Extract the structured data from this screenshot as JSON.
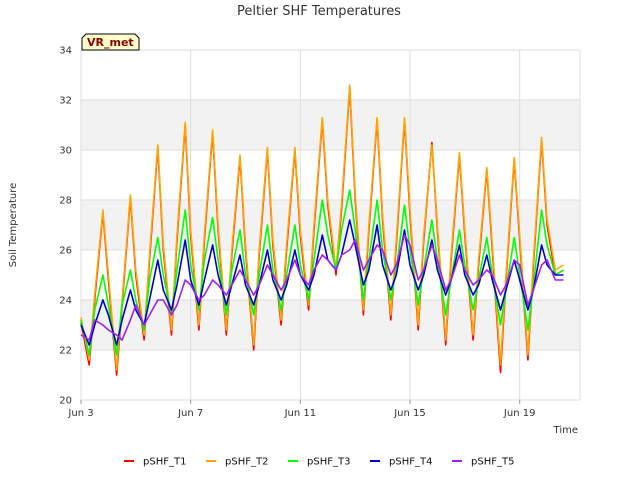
{
  "chart_data": {
    "type": "line",
    "title": "Peltier SHF Temperatures",
    "xlabel": "Time",
    "ylabel": "Soil Temperature",
    "badge": "VR_met",
    "ylim": [
      20,
      34
    ],
    "yticks": [
      20,
      22,
      24,
      26,
      28,
      30,
      32,
      34
    ],
    "xlim": [
      3,
      21.2
    ],
    "xticks": [
      {
        "day": 3,
        "label": "Jun 3"
      },
      {
        "day": 7,
        "label": "Jun 7"
      },
      {
        "day": 11,
        "label": "Jun 11"
      },
      {
        "day": 15,
        "label": "Jun 15"
      },
      {
        "day": 19,
        "label": "Jun 19"
      }
    ],
    "grid": true,
    "legend_position": "bottom",
    "series": [
      {
        "name": "pSHF_T1",
        "color": "#ff0000",
        "x": [
          3.0,
          3.3,
          3.5,
          3.8,
          4.0,
          4.3,
          4.5,
          4.8,
          5.0,
          5.3,
          5.5,
          5.8,
          6.0,
          6.3,
          6.5,
          6.8,
          7.0,
          7.3,
          7.5,
          7.8,
          8.0,
          8.3,
          8.5,
          8.8,
          9.0,
          9.3,
          9.5,
          9.8,
          10.0,
          10.3,
          10.5,
          10.8,
          11.0,
          11.3,
          11.5,
          11.8,
          12.0,
          12.3,
          12.5,
          12.8,
          13.0,
          13.3,
          13.5,
          13.8,
          14.0,
          14.3,
          14.5,
          14.8,
          15.0,
          15.3,
          15.5,
          15.8,
          16.0,
          16.3,
          16.5,
          16.8,
          17.0,
          17.3,
          17.5,
          17.8,
          18.0,
          18.3,
          18.5,
          18.8,
          19.0,
          19.3,
          19.5,
          19.8,
          20.0,
          20.3,
          20.6
        ],
        "y": [
          23.1,
          21.4,
          24.0,
          27.5,
          24.8,
          21.0,
          23.8,
          28.1,
          25.0,
          22.4,
          25.6,
          30.1,
          26.0,
          22.6,
          26.4,
          31.0,
          26.6,
          22.8,
          26.4,
          30.7,
          26.8,
          22.6,
          25.8,
          29.7,
          26.0,
          22.0,
          25.8,
          30.0,
          26.2,
          23.0,
          26.0,
          30.0,
          26.6,
          23.6,
          26.8,
          31.2,
          27.8,
          25.0,
          27.6,
          32.5,
          28.0,
          23.4,
          26.8,
          31.2,
          27.2,
          23.2,
          26.2,
          31.2,
          27.4,
          22.8,
          26.4,
          30.3,
          26.8,
          22.2,
          25.6,
          29.8,
          26.6,
          22.4,
          25.4,
          29.2,
          26.0,
          21.1,
          24.8,
          29.6,
          26.4,
          21.6,
          25.4,
          30.4,
          27.0,
          25.0,
          25.2
        ]
      },
      {
        "name": "pSHF_T2",
        "color": "#ffa500",
        "x": [
          3.0,
          3.3,
          3.5,
          3.8,
          4.0,
          4.3,
          4.5,
          4.8,
          5.0,
          5.3,
          5.5,
          5.8,
          6.0,
          6.3,
          6.5,
          6.8,
          7.0,
          7.3,
          7.5,
          7.8,
          8.0,
          8.3,
          8.5,
          8.8,
          9.0,
          9.3,
          9.5,
          9.8,
          10.0,
          10.3,
          10.5,
          10.8,
          11.0,
          11.3,
          11.5,
          11.8,
          12.0,
          12.3,
          12.5,
          12.8,
          13.0,
          13.3,
          13.5,
          13.8,
          14.0,
          14.3,
          14.5,
          14.8,
          15.0,
          15.3,
          15.5,
          15.8,
          16.0,
          16.3,
          16.5,
          16.8,
          17.0,
          17.3,
          17.5,
          17.8,
          18.0,
          18.3,
          18.5,
          18.8,
          19.0,
          19.3,
          19.5,
          19.8,
          20.0,
          20.3,
          20.6
        ],
        "y": [
          23.3,
          21.6,
          24.2,
          27.6,
          25.0,
          21.2,
          24.0,
          28.2,
          25.2,
          22.6,
          25.8,
          30.2,
          26.2,
          22.8,
          26.6,
          31.1,
          26.8,
          23.0,
          26.6,
          30.8,
          27.0,
          22.8,
          26.0,
          29.8,
          26.2,
          22.2,
          26.0,
          30.1,
          26.4,
          23.2,
          26.2,
          30.1,
          26.8,
          23.8,
          27.0,
          31.3,
          28.0,
          25.2,
          27.8,
          32.6,
          28.2,
          23.6,
          27.0,
          31.3,
          27.4,
          23.4,
          26.4,
          31.3,
          27.6,
          23.0,
          26.6,
          30.2,
          27.0,
          22.4,
          25.8,
          29.9,
          26.8,
          22.6,
          25.6,
          29.3,
          26.2,
          21.4,
          25.0,
          29.7,
          26.6,
          21.8,
          25.6,
          30.5,
          27.2,
          25.2,
          25.4
        ]
      },
      {
        "name": "pSHF_T3",
        "color": "#00ff00",
        "x": [
          3.0,
          3.3,
          3.5,
          3.8,
          4.0,
          4.3,
          4.5,
          4.8,
          5.0,
          5.3,
          5.5,
          5.8,
          6.0,
          6.3,
          6.5,
          6.8,
          7.0,
          7.3,
          7.5,
          7.8,
          8.0,
          8.3,
          8.5,
          8.8,
          9.0,
          9.3,
          9.5,
          9.8,
          10.0,
          10.3,
          10.5,
          10.8,
          11.0,
          11.3,
          11.5,
          11.8,
          12.0,
          12.3,
          12.5,
          12.8,
          13.0,
          13.3,
          13.5,
          13.8,
          14.0,
          14.3,
          14.5,
          14.8,
          15.0,
          15.3,
          15.5,
          15.8,
          16.0,
          16.3,
          16.5,
          16.8,
          17.0,
          17.3,
          17.5,
          17.8,
          18.0,
          18.3,
          18.5,
          18.8,
          19.0,
          19.3,
          19.5,
          19.8,
          20.0,
          20.3,
          20.6
        ],
        "y": [
          23.2,
          21.8,
          23.6,
          25.0,
          23.8,
          21.8,
          23.8,
          25.2,
          24.0,
          22.8,
          24.8,
          26.5,
          25.0,
          23.4,
          25.2,
          27.6,
          25.4,
          23.6,
          25.6,
          27.3,
          25.6,
          23.4,
          25.2,
          26.8,
          25.0,
          23.4,
          25.0,
          27.0,
          25.2,
          23.6,
          25.0,
          27.0,
          25.4,
          24.0,
          25.6,
          28.0,
          26.6,
          25.2,
          26.8,
          28.4,
          26.8,
          24.0,
          25.6,
          28.0,
          26.0,
          24.0,
          25.2,
          27.8,
          26.0,
          23.8,
          25.2,
          27.2,
          25.6,
          23.4,
          24.8,
          26.8,
          25.4,
          23.6,
          24.8,
          26.5,
          25.0,
          23.0,
          24.4,
          26.5,
          25.0,
          22.8,
          24.6,
          27.6,
          26.2,
          25.0,
          25.2
        ]
      },
      {
        "name": "pSHF_T4",
        "color": "#0000cd",
        "x": [
          3.0,
          3.3,
          3.5,
          3.8,
          4.0,
          4.3,
          4.5,
          4.8,
          5.0,
          5.3,
          5.5,
          5.8,
          6.0,
          6.3,
          6.5,
          6.8,
          7.0,
          7.3,
          7.5,
          7.8,
          8.0,
          8.3,
          8.5,
          8.8,
          9.0,
          9.3,
          9.5,
          9.8,
          10.0,
          10.3,
          10.5,
          10.8,
          11.0,
          11.3,
          11.5,
          11.8,
          12.0,
          12.3,
          12.5,
          12.8,
          13.0,
          13.3,
          13.5,
          13.8,
          14.0,
          14.3,
          14.5,
          14.8,
          15.0,
          15.3,
          15.5,
          15.8,
          16.0,
          16.3,
          16.5,
          16.8,
          17.0,
          17.3,
          17.5,
          17.8,
          18.0,
          18.3,
          18.5,
          18.8,
          19.0,
          19.3,
          19.5,
          19.8,
          20.0,
          20.3,
          20.6
        ],
        "y": [
          23.0,
          22.2,
          23.0,
          24.0,
          23.4,
          22.2,
          23.2,
          24.4,
          23.6,
          23.0,
          24.0,
          25.6,
          24.4,
          23.6,
          24.6,
          26.4,
          24.8,
          23.8,
          24.8,
          26.2,
          25.0,
          23.8,
          24.6,
          25.8,
          24.6,
          23.8,
          24.6,
          26.0,
          24.8,
          24.0,
          24.6,
          26.0,
          25.0,
          24.4,
          25.0,
          26.6,
          25.6,
          25.2,
          25.8,
          27.2,
          26.2,
          24.6,
          25.2,
          27.0,
          25.4,
          24.4,
          25.0,
          26.8,
          25.4,
          24.4,
          25.0,
          26.4,
          25.2,
          24.2,
          24.8,
          26.2,
          25.0,
          24.2,
          24.6,
          25.8,
          24.8,
          23.6,
          24.4,
          25.6,
          24.8,
          23.6,
          24.4,
          26.2,
          25.4,
          25.0,
          25.0
        ]
      },
      {
        "name": "pSHF_T5",
        "color": "#a020f0",
        "x": [
          3.0,
          3.3,
          3.5,
          3.8,
          4.0,
          4.3,
          4.5,
          4.8,
          5.0,
          5.3,
          5.5,
          5.8,
          6.0,
          6.3,
          6.5,
          6.8,
          7.0,
          7.3,
          7.5,
          7.8,
          8.0,
          8.3,
          8.5,
          8.8,
          9.0,
          9.3,
          9.5,
          9.8,
          10.0,
          10.3,
          10.5,
          10.8,
          11.0,
          11.3,
          11.5,
          11.8,
          12.0,
          12.3,
          12.5,
          12.8,
          13.0,
          13.3,
          13.5,
          13.8,
          14.0,
          14.3,
          14.5,
          14.8,
          15.0,
          15.3,
          15.5,
          15.8,
          16.0,
          16.3,
          16.5,
          16.8,
          17.0,
          17.3,
          17.5,
          17.8,
          18.0,
          18.3,
          18.5,
          18.8,
          19.0,
          19.3,
          19.5,
          19.8,
          20.0,
          20.3,
          20.6
        ],
        "y": [
          22.6,
          22.4,
          23.2,
          23.0,
          22.8,
          22.6,
          22.4,
          23.2,
          23.8,
          23.0,
          23.4,
          24.0,
          24.0,
          23.4,
          23.8,
          24.8,
          24.6,
          24.0,
          24.2,
          24.8,
          24.6,
          24.2,
          24.6,
          25.2,
          24.8,
          24.2,
          24.6,
          25.4,
          25.0,
          24.4,
          24.8,
          25.6,
          25.0,
          24.6,
          25.2,
          25.8,
          25.6,
          25.2,
          25.8,
          26.0,
          26.4,
          25.2,
          25.6,
          26.2,
          26.0,
          25.0,
          25.4,
          26.6,
          26.2,
          24.8,
          25.2,
          26.2,
          25.6,
          24.4,
          24.8,
          25.8,
          25.2,
          24.6,
          24.8,
          25.2,
          25.0,
          24.2,
          24.6,
          25.6,
          25.4,
          23.8,
          24.4,
          25.4,
          25.6,
          24.8,
          24.8
        ]
      }
    ]
  }
}
